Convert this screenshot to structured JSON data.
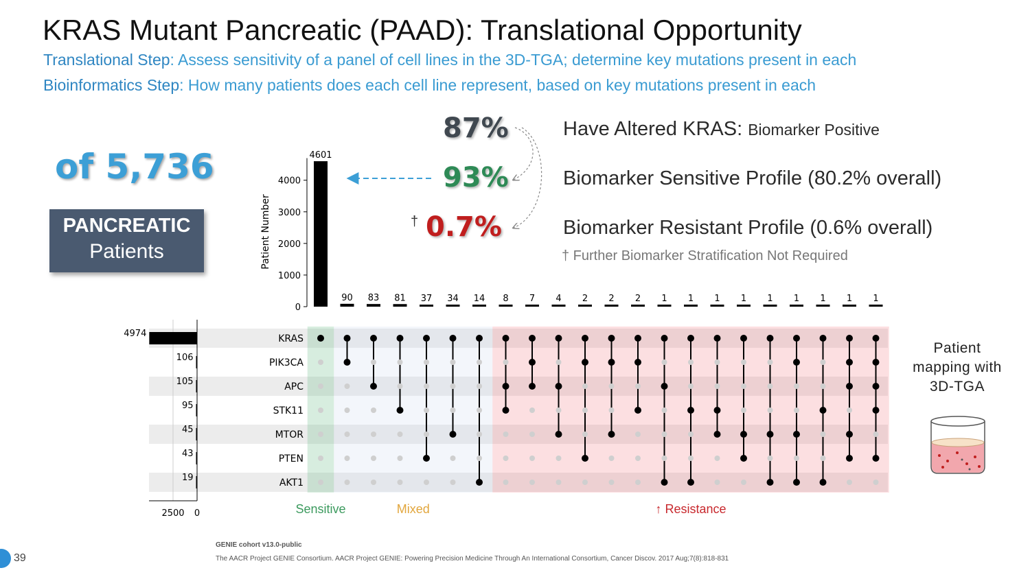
{
  "title": "KRAS Mutant Pancreatic (PAAD): Translational Opportunity",
  "subtitle1": {
    "label": "Translational Step",
    "text": ": Assess sensitivity of a panel of cell lines in the 3D-TGA; determine key mutations present in each"
  },
  "subtitle2": {
    "label": "Bioinformatics Step",
    "text": ": How many patients does each cell line represent, based on key mutations present in each"
  },
  "count_text": "of 5,736",
  "patients_box": {
    "line1": "PANCREATIC",
    "line2": "Patients"
  },
  "percentages": {
    "p1": "87%",
    "p2": "93%",
    "p3": "0.7%",
    "dagger": "†"
  },
  "right_labels": {
    "r1_main": "Have Altered KRAS:",
    "r1_small": "Biomarker Positive",
    "r2": "Biomarker Sensitive Profile (80.2% overall)",
    "r3": "Biomarker Resistant Profile (0.6% overall)",
    "note": "† Further Biomarker Stratification Not Required"
  },
  "mapping_text": {
    "l1": "Patient",
    "l2": "mapping with",
    "l3": "3D-TGA"
  },
  "footer": {
    "page": "39",
    "source1": "GENIE cohort v13.0-public",
    "source2": "The AACR Project GENIE Consortium. AACR Project GENIE: Powering Precision Medicine Through An International Consortium, Cancer Discov. 2017 Aug;7(8):818-831"
  },
  "colors": {
    "accent": "#3c9fd6",
    "sensitive": "#3c9a5e",
    "mixed": "#e2a63c",
    "resistance": "#c8282d"
  },
  "chart_data": {
    "type": "upset",
    "ylabel": "Patient Number",
    "yticks": [
      0,
      1000,
      2000,
      3000,
      4000
    ],
    "ylim": [
      0,
      4700
    ],
    "genes": [
      "KRAS",
      "PIK3CA",
      "APC",
      "STK11",
      "MTOR",
      "PTEN",
      "AKT1"
    ],
    "set_sizes": [
      4974,
      106,
      105,
      95,
      45,
      43,
      19
    ],
    "set_size_ticks": [
      2500,
      0
    ],
    "set_size_max": 5000,
    "intersections": [
      {
        "count": 4601,
        "genes": [
          0
        ],
        "group": "sensitive"
      },
      {
        "count": 90,
        "genes": [
          0,
          1
        ],
        "group": "mixed"
      },
      {
        "count": 83,
        "genes": [
          0,
          2
        ],
        "group": "mixed"
      },
      {
        "count": 81,
        "genes": [
          0,
          3
        ],
        "group": "mixed"
      },
      {
        "count": 37,
        "genes": [
          0,
          5
        ],
        "group": "mixed"
      },
      {
        "count": 34,
        "genes": [
          0,
          4
        ],
        "group": "mixed"
      },
      {
        "count": 14,
        "genes": [
          0,
          6
        ],
        "group": "mixed"
      },
      {
        "count": 8,
        "genes": [
          0,
          2,
          3
        ],
        "group": "resistance"
      },
      {
        "count": 7,
        "genes": [
          0,
          1,
          2
        ],
        "group": "resistance"
      },
      {
        "count": 4,
        "genes": [
          0,
          2,
          4
        ],
        "group": "resistance"
      },
      {
        "count": 2,
        "genes": [
          0,
          1,
          5
        ],
        "group": "resistance"
      },
      {
        "count": 2,
        "genes": [
          0,
          1,
          4
        ],
        "group": "resistance"
      },
      {
        "count": 2,
        "genes": [
          0,
          1,
          3
        ],
        "group": "resistance"
      },
      {
        "count": 1,
        "genes": [
          0,
          2,
          6
        ],
        "group": "resistance"
      },
      {
        "count": 1,
        "genes": [
          0,
          3,
          6
        ],
        "group": "resistance"
      },
      {
        "count": 1,
        "genes": [
          0,
          3,
          4
        ],
        "group": "resistance"
      },
      {
        "count": 1,
        "genes": [
          0,
          4,
          5
        ],
        "group": "resistance"
      },
      {
        "count": 1,
        "genes": [
          0,
          4,
          6
        ],
        "group": "resistance"
      },
      {
        "count": 1,
        "genes": [
          0,
          1,
          4,
          6
        ],
        "group": "resistance"
      },
      {
        "count": 1,
        "genes": [
          0,
          3,
          6
        ],
        "group": "resistance"
      },
      {
        "count": 1,
        "genes": [
          0,
          1,
          2,
          4,
          5
        ],
        "group": "resistance"
      },
      {
        "count": 1,
        "genes": [
          0,
          1,
          2,
          3,
          5
        ],
        "group": "resistance"
      }
    ],
    "group_labels": {
      "sensitive": "Sensitive",
      "mixed": "Mixed",
      "resistance": "↑ Resistance"
    }
  }
}
